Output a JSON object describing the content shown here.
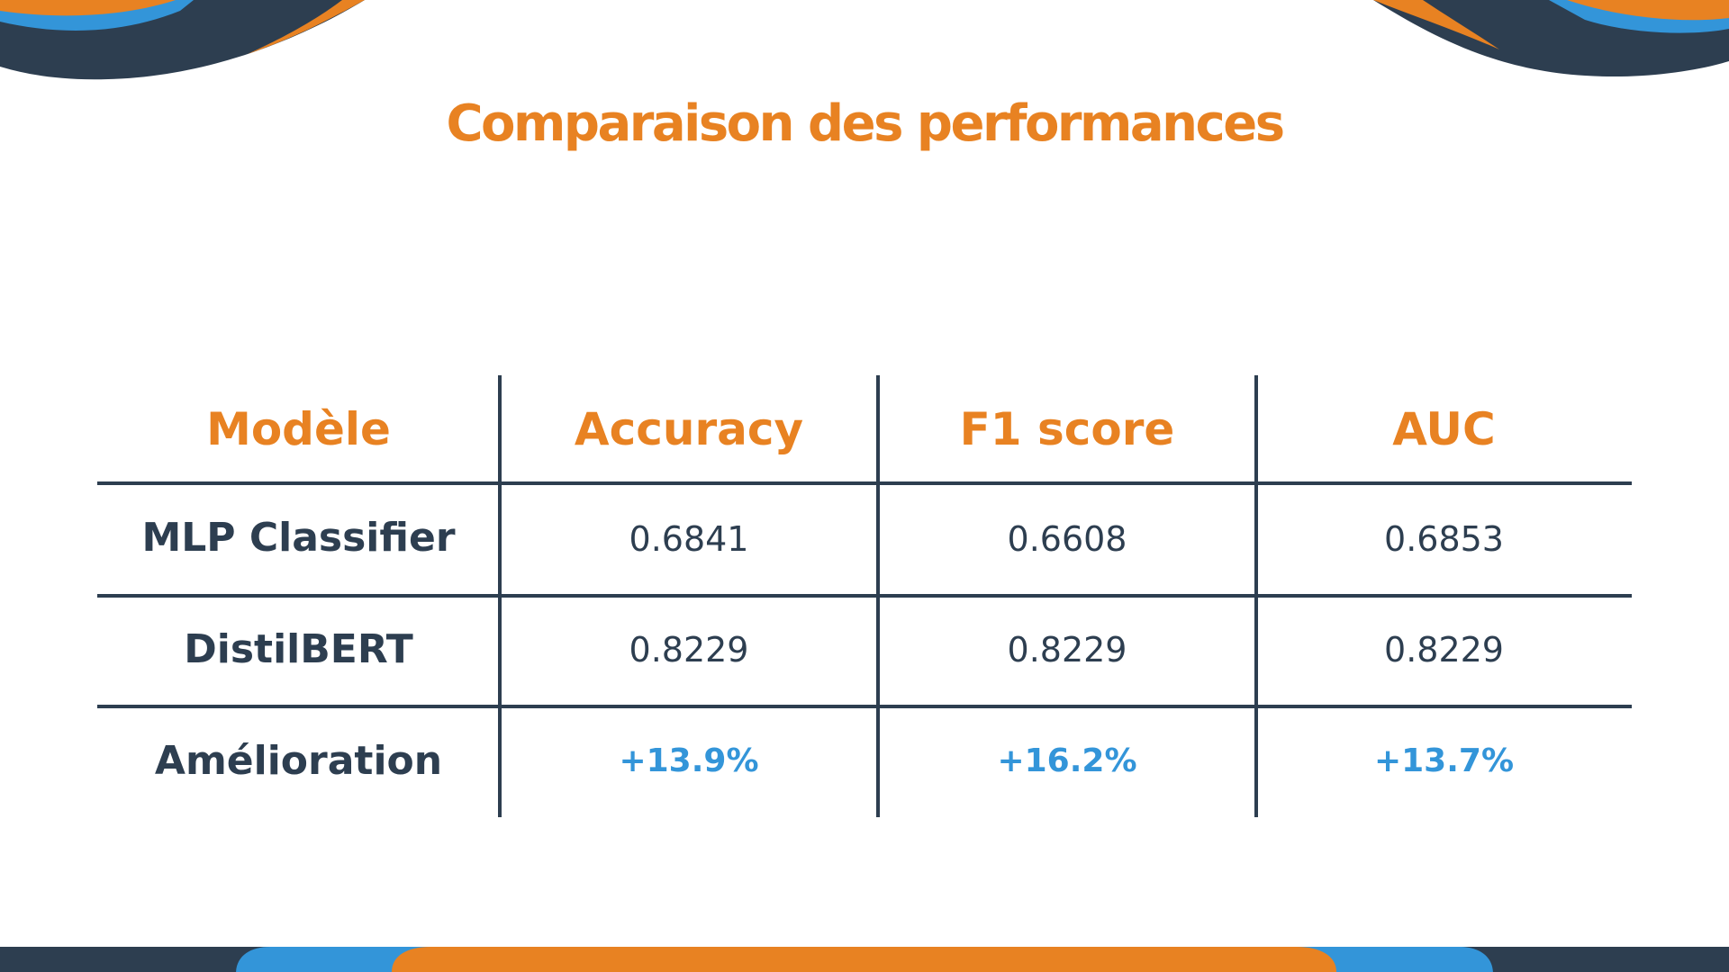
{
  "slide": {
    "title": "Comparaison des performances"
  },
  "table": {
    "headers": [
      "Modèle",
      "Accuracy",
      "F1 score",
      "AUC"
    ],
    "rows": [
      {
        "model": "MLP Classifier",
        "accuracy": "0.6841",
        "f1": "0.6608",
        "auc": "0.6853"
      },
      {
        "model": "DistilBERT",
        "accuracy": "0.8229",
        "f1": "0.8229",
        "auc": "0.8229"
      },
      {
        "model": "Amélioration",
        "accuracy": "+13.9%",
        "f1": "+16.2%",
        "auc": "+13.7%"
      }
    ]
  },
  "colors": {
    "accent_orange": "#e88222",
    "navy": "#2d3e50",
    "blue": "#3395d9",
    "background": "#ffffff"
  }
}
